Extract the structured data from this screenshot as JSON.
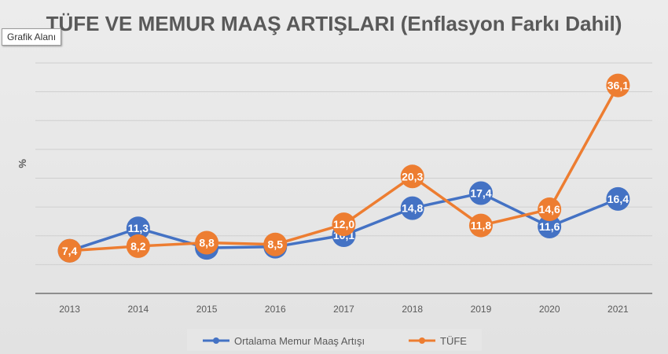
{
  "tooltip": "Grafik Alanı",
  "chart_data": {
    "type": "line",
    "title": "TÜFE VE MEMUR MAAŞ ARTIŞLARI (Enflasyon Farkı Dahil)",
    "xlabel": "",
    "ylabel": "%",
    "categories": [
      "2013",
      "2014",
      "2015",
      "2016",
      "2017",
      "2018",
      "2019",
      "2020",
      "2021"
    ],
    "ylim": [
      0,
      40
    ],
    "grid": true,
    "legend": "bottom",
    "series": [
      {
        "name": "Ortalama Memur Maaş Artışı",
        "color": "#4472c4",
        "values": [
          7.4,
          11.3,
          7.9,
          8.1,
          10.1,
          14.8,
          17.4,
          11.6,
          16.4
        ],
        "labels": [
          "7,4",
          "11,3",
          "7,9",
          "8,1",
          "10,1",
          "14,8",
          "17,4",
          "11,6",
          "16,4"
        ]
      },
      {
        "name": "TÜFE",
        "color": "#ed7d31",
        "values": [
          7.4,
          8.2,
          8.8,
          8.5,
          12.0,
          20.3,
          11.8,
          14.6,
          36.1
        ],
        "labels": [
          "7,4",
          "8,2",
          "8,8",
          "8,5",
          "12,0",
          "20,3",
          "11,8",
          "14,6",
          "36,1"
        ]
      }
    ]
  }
}
